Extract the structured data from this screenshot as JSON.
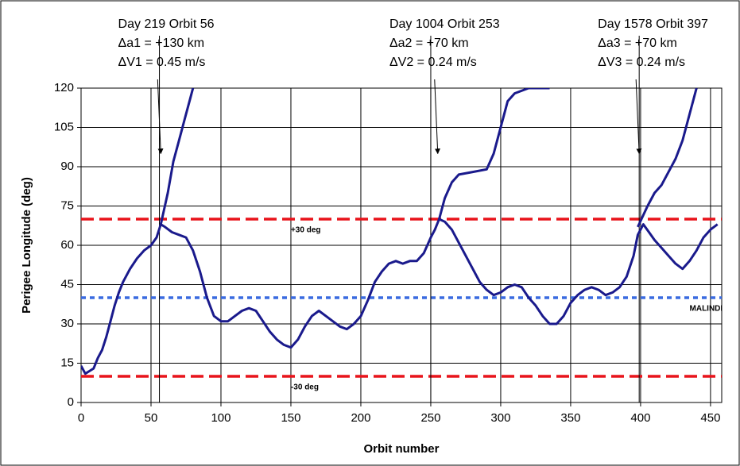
{
  "chart_data": {
    "type": "line",
    "xlabel": "Orbit number",
    "ylabel": "Perigee Longitude (deg)",
    "xlim": [
      0,
      458
    ],
    "xticks": [
      0,
      50,
      100,
      150,
      200,
      250,
      300,
      350,
      400,
      450
    ],
    "ylim": [
      0,
      120
    ],
    "yticks": [
      0,
      15,
      30,
      45,
      60,
      75,
      90,
      105,
      120
    ],
    "grid": true,
    "series": [
      {
        "color": "#1a1a8c",
        "x": [
          0,
          3,
          6,
          9,
          12,
          15,
          18,
          21,
          24,
          27,
          30,
          35,
          40,
          45,
          50,
          54,
          57,
          60,
          65,
          70,
          75,
          80,
          85,
          90,
          95,
          100,
          105,
          110,
          115,
          120,
          125,
          130,
          135,
          140,
          145,
          150,
          155,
          160,
          165,
          170,
          175,
          180,
          185,
          190,
          195,
          200,
          205,
          210,
          215,
          220,
          225,
          230,
          235,
          240,
          245,
          250,
          253,
          256,
          260,
          265,
          270,
          275,
          280,
          285,
          290,
          295,
          300,
          305,
          310,
          315,
          320,
          325,
          330,
          335,
          340,
          345,
          350,
          355,
          360,
          365,
          370,
          375,
          380,
          385,
          390,
          395,
          398,
          402,
          406,
          410,
          415,
          420,
          425,
          430,
          435,
          440,
          445,
          450,
          455
        ],
        "values": [
          14,
          11,
          12,
          13,
          17,
          20,
          25,
          31,
          37,
          42,
          46,
          51,
          55,
          58,
          60,
          63,
          68,
          67,
          65,
          64,
          63,
          58,
          50,
          40,
          33,
          31,
          31,
          33,
          35,
          36,
          35,
          31,
          27,
          24,
          22,
          21,
          24,
          29,
          33,
          35,
          33,
          31,
          29,
          28,
          30,
          33,
          39,
          46,
          50,
          53,
          54,
          53,
          54,
          54,
          57,
          63,
          66,
          70,
          69,
          66,
          61,
          56,
          51,
          46,
          43,
          41,
          42,
          44,
          45,
          44,
          40,
          37,
          33,
          30,
          30,
          33,
          38,
          41,
          43,
          44,
          43,
          41,
          42,
          44,
          48,
          56,
          64,
          68,
          65,
          62,
          59,
          56,
          53,
          51,
          54,
          58,
          63,
          66,
          68
        ]
      },
      {
        "color": "#1a1a8c",
        "x": [
          57,
          62,
          66,
          70,
          74,
          78,
          80
        ],
        "values": [
          68,
          80,
          92,
          100,
          108,
          116,
          120
        ]
      },
      {
        "color": "#1a1a8c",
        "x": [
          256,
          260,
          265,
          270,
          280,
          290,
          295,
          300,
          305,
          310,
          320,
          330,
          335
        ],
        "values": [
          70,
          78,
          84,
          87,
          88,
          89,
          95,
          105,
          115,
          118,
          120,
          120,
          120
        ]
      },
      {
        "color": "#1a1a8c",
        "x": [
          398,
          405,
          410,
          415,
          420,
          425,
          430,
          435,
          440
        ],
        "values": [
          67,
          75,
          80,
          83,
          88,
          93,
          100,
          110,
          120
        ]
      }
    ],
    "hlines": [
      {
        "value": 70,
        "color": "#e8141b",
        "style": "dashed",
        "label": "+30 deg",
        "label_x": 150
      },
      {
        "value": 10,
        "color": "#e8141b",
        "style": "dashed",
        "label": "-30 deg",
        "label_x": 150
      },
      {
        "value": 40,
        "color": "#3a6be0",
        "style": "dotted",
        "label": "MALINDI",
        "label_x": 435
      }
    ],
    "annotations": [
      {
        "x": 56,
        "arrow_to": [
          57,
          95
        ],
        "lines": [
          "Day 219 Orbit 56",
          "Δa1 = +130 km",
          "ΔV1 = 0.45 m/s"
        ]
      },
      {
        "x": 250,
        "arrow_to": [
          255,
          95
        ],
        "lines": [
          "Day 1004 Orbit 253",
          "Δa2 = +70 km",
          "ΔV2 = 0.24 m/s"
        ]
      },
      {
        "x": 399,
        "arrow_to": [
          399,
          95
        ],
        "lines": [
          "Day 1578 Orbit 397",
          "Δa3 = +70 km",
          "ΔV3 = 0.24 m/s"
        ]
      }
    ]
  }
}
